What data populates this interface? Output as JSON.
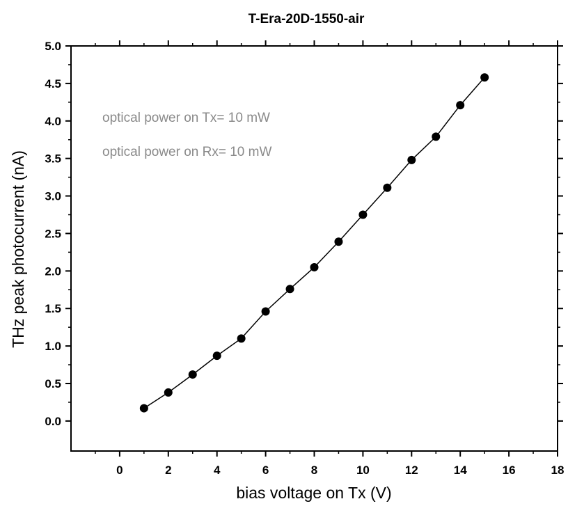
{
  "chart_data": {
    "type": "line",
    "title": "T-Era-20D-1550-air",
    "xlabel": "bias voltage on Tx (V)",
    "ylabel": "THz peak photocurrent (nA)",
    "xlim": [
      -2,
      18
    ],
    "ylim": [
      -0.4,
      5.0
    ],
    "xticks": [
      0,
      2,
      4,
      6,
      8,
      10,
      12,
      14,
      16,
      18
    ],
    "xtick_labels": [
      "0",
      "2",
      "4",
      "6",
      "8",
      "10",
      "12",
      "14",
      "16",
      "18"
    ],
    "yticks": [
      0.0,
      0.5,
      1.0,
      1.5,
      2.0,
      2.5,
      3.0,
      3.5,
      4.0,
      4.5,
      5.0
    ],
    "ytick_labels": [
      "0.0",
      "0.5",
      "1.0",
      "1.5",
      "2.0",
      "2.5",
      "3.0",
      "3.5",
      "4.0",
      "4.5",
      "5.0"
    ],
    "grid": false,
    "annotations": [
      "optical power on Tx= 10 mW",
      "optical power on Rx= 10 mW"
    ],
    "series": [
      {
        "x": [
          1,
          2,
          3,
          4,
          5,
          6,
          7,
          8,
          9,
          10,
          11,
          12,
          13,
          14,
          15
        ],
        "y": [
          0.17,
          0.38,
          0.62,
          0.87,
          1.1,
          1.46,
          1.76,
          2.05,
          2.39,
          2.75,
          3.11,
          3.48,
          3.79,
          4.21,
          4.58
        ]
      }
    ]
  }
}
